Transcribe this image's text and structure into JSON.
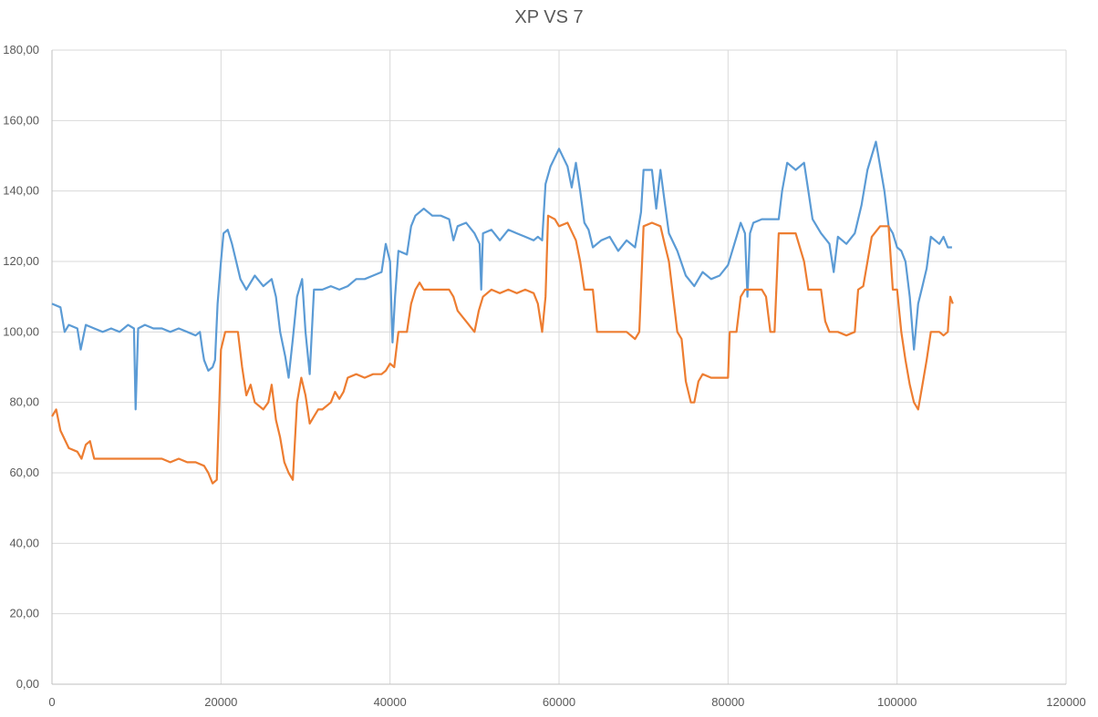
{
  "chart_data": {
    "type": "line",
    "title": "XP VS 7",
    "xlabel": "",
    "ylabel": "",
    "xlim": [
      0,
      120000
    ],
    "ylim": [
      0,
      180
    ],
    "x_ticks": [
      0,
      20000,
      40000,
      60000,
      80000,
      100000,
      120000
    ],
    "x_tick_labels": [
      "0",
      "20000",
      "40000",
      "60000",
      "80000",
      "100000",
      "120000"
    ],
    "y_ticks": [
      0,
      20,
      40,
      60,
      80,
      100,
      120,
      140,
      160,
      180
    ],
    "y_tick_labels": [
      "0,00",
      "20,00",
      "40,00",
      "60,00",
      "80,00",
      "100,00",
      "120,00",
      "140,00",
      "160,00",
      "180,00"
    ],
    "grid": true,
    "legend": "none",
    "series": [
      {
        "color": "#5b9bd5",
        "points": [
          [
            0,
            108
          ],
          [
            1000,
            107
          ],
          [
            1500,
            100
          ],
          [
            2000,
            102
          ],
          [
            3000,
            101
          ],
          [
            3400,
            95
          ],
          [
            4000,
            102
          ],
          [
            5000,
            101
          ],
          [
            6000,
            100
          ],
          [
            7000,
            101
          ],
          [
            8000,
            100
          ],
          [
            9000,
            102
          ],
          [
            9700,
            101
          ],
          [
            9900,
            78
          ],
          [
            10200,
            101
          ],
          [
            11000,
            102
          ],
          [
            12000,
            101
          ],
          [
            13000,
            101
          ],
          [
            14000,
            100
          ],
          [
            15000,
            101
          ],
          [
            16000,
            100
          ],
          [
            17000,
            99
          ],
          [
            17500,
            100
          ],
          [
            17800,
            95
          ],
          [
            18000,
            92
          ],
          [
            18500,
            89
          ],
          [
            19000,
            90
          ],
          [
            19300,
            92
          ],
          [
            19600,
            108
          ],
          [
            20000,
            120
          ],
          [
            20300,
            128
          ],
          [
            20800,
            129
          ],
          [
            21300,
            125
          ],
          [
            21800,
            120
          ],
          [
            22300,
            115
          ],
          [
            23000,
            112
          ],
          [
            24000,
            116
          ],
          [
            25000,
            113
          ],
          [
            26000,
            115
          ],
          [
            26500,
            110
          ],
          [
            27000,
            100
          ],
          [
            27600,
            93
          ],
          [
            28000,
            87
          ],
          [
            28500,
            98
          ],
          [
            29000,
            110
          ],
          [
            29600,
            115
          ],
          [
            30000,
            100
          ],
          [
            30500,
            88
          ],
          [
            31000,
            112
          ],
          [
            32000,
            112
          ],
          [
            33000,
            113
          ],
          [
            34000,
            112
          ],
          [
            35000,
            113
          ],
          [
            36000,
            115
          ],
          [
            37000,
            115
          ],
          [
            38000,
            116
          ],
          [
            39000,
            117
          ],
          [
            39500,
            125
          ],
          [
            40000,
            120
          ],
          [
            40300,
            97
          ],
          [
            40600,
            110
          ],
          [
            41000,
            123
          ],
          [
            42000,
            122
          ],
          [
            42500,
            130
          ],
          [
            43000,
            133
          ],
          [
            44000,
            135
          ],
          [
            45000,
            133
          ],
          [
            46000,
            133
          ],
          [
            47000,
            132
          ],
          [
            47500,
            126
          ],
          [
            48000,
            130
          ],
          [
            49000,
            131
          ],
          [
            50000,
            128
          ],
          [
            50600,
            125
          ],
          [
            50800,
            112
          ],
          [
            51000,
            128
          ],
          [
            52000,
            129
          ],
          [
            53000,
            126
          ],
          [
            54000,
            129
          ],
          [
            55000,
            128
          ],
          [
            56000,
            127
          ],
          [
            57000,
            126
          ],
          [
            57500,
            127
          ],
          [
            58000,
            126
          ],
          [
            58400,
            142
          ],
          [
            59000,
            147
          ],
          [
            60000,
            152
          ],
          [
            61000,
            147
          ],
          [
            61500,
            141
          ],
          [
            62000,
            148
          ],
          [
            62500,
            140
          ],
          [
            63000,
            131
          ],
          [
            63500,
            129
          ],
          [
            64000,
            124
          ],
          [
            65000,
            126
          ],
          [
            66000,
            127
          ],
          [
            67000,
            123
          ],
          [
            68000,
            126
          ],
          [
            69000,
            124
          ],
          [
            69700,
            134
          ],
          [
            70000,
            146
          ],
          [
            71000,
            146
          ],
          [
            71500,
            135
          ],
          [
            72000,
            146
          ],
          [
            72500,
            137
          ],
          [
            73000,
            128
          ],
          [
            74000,
            123
          ],
          [
            75000,
            116
          ],
          [
            76000,
            113
          ],
          [
            77000,
            117
          ],
          [
            78000,
            115
          ],
          [
            79000,
            116
          ],
          [
            80000,
            119
          ],
          [
            81000,
            127
          ],
          [
            81500,
            131
          ],
          [
            82000,
            128
          ],
          [
            82300,
            110
          ],
          [
            82600,
            128
          ],
          [
            83000,
            131
          ],
          [
            84000,
            132
          ],
          [
            85000,
            132
          ],
          [
            86000,
            132
          ],
          [
            86400,
            140
          ],
          [
            87000,
            148
          ],
          [
            88000,
            146
          ],
          [
            89000,
            148
          ],
          [
            89500,
            140
          ],
          [
            90000,
            132
          ],
          [
            91000,
            128
          ],
          [
            92000,
            125
          ],
          [
            92500,
            117
          ],
          [
            93000,
            127
          ],
          [
            94000,
            125
          ],
          [
            95000,
            128
          ],
          [
            95800,
            136
          ],
          [
            96500,
            146
          ],
          [
            97500,
            154
          ],
          [
            98500,
            140
          ],
          [
            99000,
            130
          ],
          [
            99500,
            128
          ],
          [
            100000,
            124
          ],
          [
            100500,
            123
          ],
          [
            101000,
            120
          ],
          [
            101500,
            110
          ],
          [
            102000,
            95
          ],
          [
            102500,
            108
          ],
          [
            103000,
            113
          ],
          [
            103500,
            118
          ],
          [
            104000,
            127
          ],
          [
            105000,
            125
          ],
          [
            105500,
            127
          ],
          [
            106000,
            124
          ],
          [
            106500,
            124
          ]
        ]
      },
      {
        "color": "#ed7d31",
        "points": [
          [
            0,
            76
          ],
          [
            500,
            78
          ],
          [
            1000,
            72
          ],
          [
            2000,
            67
          ],
          [
            3000,
            66
          ],
          [
            3500,
            64
          ],
          [
            4000,
            68
          ],
          [
            4500,
            69
          ],
          [
            5000,
            64
          ],
          [
            6000,
            64
          ],
          [
            7000,
            64
          ],
          [
            8000,
            64
          ],
          [
            9000,
            64
          ],
          [
            10000,
            64
          ],
          [
            11000,
            64
          ],
          [
            12000,
            64
          ],
          [
            13000,
            64
          ],
          [
            14000,
            63
          ],
          [
            15000,
            64
          ],
          [
            16000,
            63
          ],
          [
            17000,
            63
          ],
          [
            18000,
            62
          ],
          [
            18500,
            60
          ],
          [
            19000,
            57
          ],
          [
            19500,
            58
          ],
          [
            19800,
            80
          ],
          [
            20000,
            95
          ],
          [
            20500,
            100
          ],
          [
            21000,
            100
          ],
          [
            22000,
            100
          ],
          [
            22500,
            90
          ],
          [
            23000,
            82
          ],
          [
            23500,
            85
          ],
          [
            24000,
            80
          ],
          [
            25000,
            78
          ],
          [
            25600,
            80
          ],
          [
            26000,
            85
          ],
          [
            26500,
            75
          ],
          [
            27000,
            70
          ],
          [
            27500,
            63
          ],
          [
            28000,
            60
          ],
          [
            28500,
            58
          ],
          [
            29000,
            80
          ],
          [
            29500,
            87
          ],
          [
            30000,
            82
          ],
          [
            30500,
            74
          ],
          [
            31000,
            76
          ],
          [
            31500,
            78
          ],
          [
            32000,
            78
          ],
          [
            33000,
            80
          ],
          [
            33500,
            83
          ],
          [
            34000,
            81
          ],
          [
            34500,
            83
          ],
          [
            35000,
            87
          ],
          [
            36000,
            88
          ],
          [
            37000,
            87
          ],
          [
            38000,
            88
          ],
          [
            39000,
            88
          ],
          [
            39500,
            89
          ],
          [
            40000,
            91
          ],
          [
            40500,
            90
          ],
          [
            41000,
            100
          ],
          [
            42000,
            100
          ],
          [
            42500,
            108
          ],
          [
            43000,
            112
          ],
          [
            43500,
            114
          ],
          [
            44000,
            112
          ],
          [
            45000,
            112
          ],
          [
            46000,
            112
          ],
          [
            47000,
            112
          ],
          [
            47500,
            110
          ],
          [
            48000,
            106
          ],
          [
            49000,
            103
          ],
          [
            50000,
            100
          ],
          [
            50500,
            106
          ],
          [
            51000,
            110
          ],
          [
            52000,
            112
          ],
          [
            53000,
            111
          ],
          [
            54000,
            112
          ],
          [
            55000,
            111
          ],
          [
            56000,
            112
          ],
          [
            57000,
            111
          ],
          [
            57500,
            108
          ],
          [
            58000,
            100
          ],
          [
            58400,
            110
          ],
          [
            58700,
            133
          ],
          [
            59500,
            132
          ],
          [
            60000,
            130
          ],
          [
            61000,
            131
          ],
          [
            62000,
            126
          ],
          [
            62500,
            120
          ],
          [
            63000,
            112
          ],
          [
            64000,
            112
          ],
          [
            64500,
            100
          ],
          [
            65000,
            100
          ],
          [
            66000,
            100
          ],
          [
            67000,
            100
          ],
          [
            68000,
            100
          ],
          [
            69000,
            98
          ],
          [
            69500,
            100
          ],
          [
            70000,
            130
          ],
          [
            71000,
            131
          ],
          [
            72000,
            130
          ],
          [
            72500,
            125
          ],
          [
            73000,
            120
          ],
          [
            74000,
            100
          ],
          [
            74500,
            98
          ],
          [
            75000,
            86
          ],
          [
            75600,
            80
          ],
          [
            76000,
            80
          ],
          [
            76500,
            86
          ],
          [
            77000,
            88
          ],
          [
            78000,
            87
          ],
          [
            79000,
            87
          ],
          [
            80000,
            87
          ],
          [
            80200,
            100
          ],
          [
            81000,
            100
          ],
          [
            81500,
            110
          ],
          [
            82000,
            112
          ],
          [
            83000,
            112
          ],
          [
            84000,
            112
          ],
          [
            84500,
            110
          ],
          [
            85000,
            100
          ],
          [
            85500,
            100
          ],
          [
            86000,
            128
          ],
          [
            87000,
            128
          ],
          [
            88000,
            128
          ],
          [
            89000,
            120
          ],
          [
            89500,
            112
          ],
          [
            90000,
            112
          ],
          [
            91000,
            112
          ],
          [
            91500,
            103
          ],
          [
            92000,
            100
          ],
          [
            93000,
            100
          ],
          [
            94000,
            99
          ],
          [
            95000,
            100
          ],
          [
            95400,
            112
          ],
          [
            96000,
            113
          ],
          [
            97000,
            127
          ],
          [
            98000,
            130
          ],
          [
            99000,
            130
          ],
          [
            99500,
            112
          ],
          [
            100000,
            112
          ],
          [
            100500,
            100
          ],
          [
            101000,
            92
          ],
          [
            101500,
            85
          ],
          [
            102000,
            80
          ],
          [
            102500,
            78
          ],
          [
            103000,
            85
          ],
          [
            103500,
            92
          ],
          [
            104000,
            100
          ],
          [
            104500,
            100
          ],
          [
            105000,
            100
          ],
          [
            105500,
            99
          ],
          [
            106000,
            100
          ],
          [
            106300,
            110
          ],
          [
            106600,
            108
          ]
        ]
      }
    ]
  }
}
